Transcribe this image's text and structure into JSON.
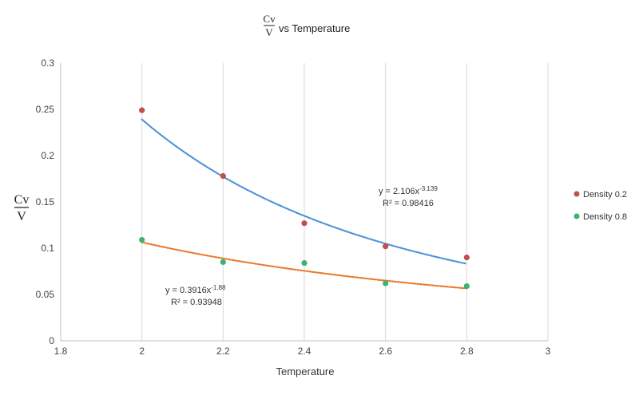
{
  "chart_data": {
    "type": "scatter",
    "title": {
      "fraction_numerator": "Cv",
      "fraction_denominator": "V",
      "suffix": "vs Temperature"
    },
    "xlabel": "Temperature",
    "ylabel": {
      "numerator": "Cv",
      "denominator": "V"
    },
    "xlim": [
      1.8,
      3
    ],
    "ylim": [
      0,
      0.3
    ],
    "xticks": [
      "1.8",
      "2",
      "2.2",
      "2.4",
      "2.6",
      "2.8",
      "3"
    ],
    "yticks": [
      "0",
      "0.05",
      "0.1",
      "0.15",
      "0.2",
      "0.25",
      "0.3"
    ],
    "vertical_gridlines": true,
    "horizontal_gridlines": false,
    "legend_position": "right",
    "series": [
      {
        "name": "Density 0.2",
        "color": "#c0504d",
        "x": [
          2.0,
          2.2,
          2.4,
          2.6,
          2.8
        ],
        "y": [
          0.249,
          0.178,
          0.127,
          0.102,
          0.09
        ],
        "trendline": {
          "type": "power",
          "a": 2.106,
          "b": -3.139,
          "color": "#4a90d9",
          "equation_prefix": "y = 2.106x",
          "equation_exponent": "-3.139",
          "r2_label": "R² = 0.98416"
        }
      },
      {
        "name": "Density 0.8",
        "color": "#3cb371",
        "x": [
          2.0,
          2.2,
          2.4,
          2.6,
          2.8
        ],
        "y": [
          0.109,
          0.085,
          0.084,
          0.062,
          0.059
        ],
        "trendline": {
          "type": "power",
          "a": 0.3916,
          "b": -1.88,
          "color": "#e8782a",
          "equation_prefix": "y = 0.3916x",
          "equation_exponent": "-1.88",
          "r2_label": "R² = 0.93948"
        }
      }
    ]
  }
}
